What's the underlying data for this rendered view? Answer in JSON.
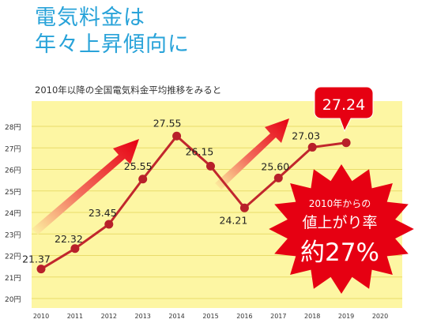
{
  "headline": {
    "line1": "電気料金は",
    "line2": "年々上昇傾向に"
  },
  "subtitle": "2010年以降の全国電気料金平均推移をみると",
  "chart_data": {
    "type": "line",
    "title": "2010年以降の全国電気料金平均推移をみると",
    "x": [
      "2010",
      "2011",
      "2012",
      "2013",
      "2014",
      "2015",
      "2016",
      "2017",
      "2018",
      "2019",
      "2020"
    ],
    "series": [
      {
        "values": [
          21.37,
          22.32,
          23.45,
          25.55,
          27.55,
          26.15,
          24.21,
          25.6,
          27.03,
          27.24,
          null
        ]
      }
    ],
    "value_labels": [
      "21.37",
      "22.32",
      "23.45",
      "25.55",
      "27.55",
      "26.15",
      "24.21",
      "25.60",
      "27.03",
      "27.24"
    ],
    "y_ticks": [
      "20円",
      "21円",
      "22円",
      "23円",
      "24円",
      "25円",
      "26円",
      "27円",
      "28円"
    ],
    "ylim": [
      20,
      28
    ],
    "grid": true,
    "highlight_label": "27.24",
    "callout": {
      "line1": "2010年からの",
      "line2": "値上がり率",
      "line3": "約27%"
    }
  },
  "colors": {
    "headline": "#29a3d9",
    "plot_bg": "#fdf6a3",
    "grid": "#e9dc6a",
    "line": "#c1272d",
    "marker": "#b8202a",
    "burst": "#e60012",
    "arrow": "#e60012"
  }
}
